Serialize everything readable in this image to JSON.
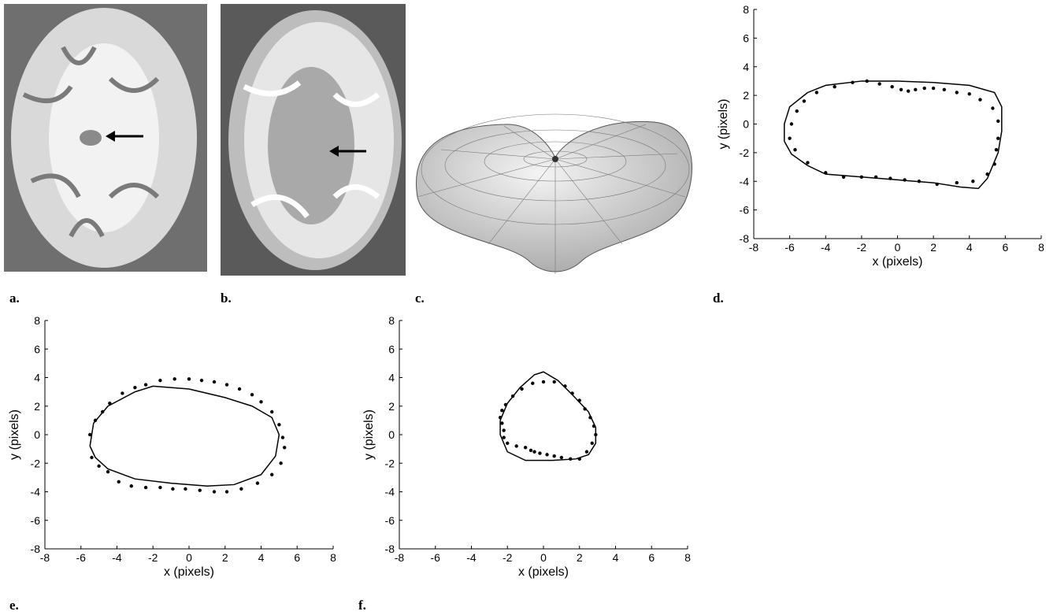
{
  "panel_labels": [
    "a.",
    "b.",
    "c.",
    "d.",
    "e.",
    "f."
  ],
  "chart_data": [
    {
      "type": "scatter",
      "xlabel": "x (pixels)",
      "ylabel": "y (pixels)",
      "xlim": [
        -8,
        8
      ],
      "ylim": [
        -8,
        8
      ],
      "xticks": [
        -8,
        -6,
        -4,
        -2,
        0,
        2,
        4,
        6,
        8
      ],
      "yticks": [
        -8,
        -6,
        -4,
        -2,
        0,
        2,
        4,
        6,
        8
      ],
      "series": [
        {
          "mode": "line",
          "color": "#000000",
          "x": [
            -6.3,
            -6.3,
            -6,
            -5,
            -4,
            -2,
            0,
            2,
            4,
            5.4,
            5.8,
            5.8,
            5.6,
            5,
            4.5,
            3.5,
            2,
            0,
            -2,
            -4,
            -5,
            -5.9,
            -6.3
          ],
          "values": [
            -1.2,
            0,
            1.2,
            2.2,
            2.7,
            3.0,
            3.0,
            2.9,
            2.7,
            2.2,
            1.2,
            -0.5,
            -2,
            -3.8,
            -4.5,
            -4.4,
            -4.1,
            -3.9,
            -3.7,
            -3.5,
            -2.9,
            -2.1,
            -1.2
          ]
        },
        {
          "mode": "markers",
          "color": "#000000",
          "x": [
            -5.7,
            -6,
            -5.9,
            -5.6,
            -5.2,
            -4.5,
            -3.5,
            -2.5,
            -1.7,
            -1,
            -0.3,
            0.2,
            0.6,
            1,
            1.5,
            2,
            2.6,
            3.3,
            4,
            4.6,
            5.3,
            5.6,
            5.6,
            5.5,
            5.4,
            5,
            4.2,
            3.3,
            2.2,
            1.2,
            0.4,
            -0.4,
            -1.2,
            -2,
            -3,
            -4,
            -5
          ],
          "values": [
            -1.8,
            -1,
            0,
            0.9,
            1.6,
            2.2,
            2.6,
            2.9,
            3.0,
            2.8,
            2.6,
            2.4,
            2.3,
            2.4,
            2.5,
            2.5,
            2.4,
            2.2,
            2.1,
            1.7,
            1.1,
            0.2,
            -1,
            -1.8,
            -2.8,
            -3.5,
            -4,
            -4.1,
            -4.2,
            -4.0,
            -3.9,
            -3.8,
            -3.7,
            -3.7,
            -3.7,
            -3.4,
            -2.7
          ]
        }
      ]
    },
    {
      "type": "scatter",
      "xlabel": "x (pixels)",
      "ylabel": "y (pixels)",
      "xlim": [
        -8,
        8
      ],
      "ylim": [
        -8,
        8
      ],
      "xticks": [
        -8,
        -6,
        -4,
        -2,
        0,
        2,
        4,
        6,
        8
      ],
      "yticks": [
        -8,
        -6,
        -4,
        -2,
        0,
        2,
        4,
        6,
        8
      ],
      "series": [
        {
          "mode": "line",
          "color": "#000000",
          "x": [
            -5.5,
            -5.3,
            -4.5,
            -3,
            -2,
            0,
            2,
            3.5,
            4.6,
            5,
            4.8,
            4,
            2.5,
            1,
            -1,
            -3,
            -4.5,
            -5.2,
            -5.5
          ],
          "values": [
            -0.8,
            0.8,
            2.0,
            3.0,
            3.4,
            3.2,
            2.6,
            2.0,
            1.2,
            0,
            -1.5,
            -2.8,
            -3.5,
            -3.6,
            -3.4,
            -3.1,
            -2.4,
            -1.6,
            -0.8
          ]
        },
        {
          "mode": "markers",
          "color": "#000000",
          "x": [
            -5.4,
            -5.5,
            -5.2,
            -4.8,
            -4.4,
            -3.7,
            -3,
            -2.4,
            -1.6,
            -0.8,
            0,
            0.7,
            1.4,
            2.1,
            2.8,
            3.5,
            4,
            4.6,
            5,
            5.2,
            5.3,
            5.1,
            4.6,
            3.8,
            2.9,
            2.1,
            1.4,
            0.6,
            -0.2,
            -0.9,
            -1.6,
            -2.4,
            -3.2,
            -3.9,
            -4.5,
            -5
          ],
          "values": [
            -1.6,
            0,
            1,
            1.6,
            2.2,
            2.9,
            3.3,
            3.5,
            3.8,
            3.9,
            3.9,
            3.8,
            3.7,
            3.5,
            3.2,
            2.8,
            2.3,
            1.6,
            0.7,
            -0.2,
            -0.9,
            -2,
            -2.8,
            -3.4,
            -3.8,
            -4.0,
            -4.0,
            -3.9,
            -3.8,
            -3.8,
            -3.7,
            -3.7,
            -3.6,
            -3.3,
            -2.6,
            -2.2
          ]
        }
      ]
    },
    {
      "type": "scatter",
      "xlabel": "x (pixels)",
      "ylabel": "y (pixels)",
      "xlim": [
        -8,
        8
      ],
      "ylim": [
        -8,
        8
      ],
      "xticks": [
        -8,
        -6,
        -4,
        -2,
        0,
        2,
        4,
        6,
        8
      ],
      "yticks": [
        -8,
        -6,
        -4,
        -2,
        0,
        2,
        4,
        6,
        8
      ],
      "series": [
        {
          "mode": "line",
          "color": "#000000",
          "x": [
            -2.4,
            -2,
            -1.3,
            -0.5,
            0,
            0.8,
            1.6,
            2.5,
            2.9,
            2.9,
            2.5,
            1.8,
            0.5,
            -1,
            -2,
            -2.4,
            -2.4
          ],
          "values": [
            1.0,
            2.2,
            3.3,
            4.2,
            4.4,
            3.8,
            2.8,
            1.6,
            0.5,
            -0.6,
            -1.4,
            -1.7,
            -1.8,
            -1.8,
            -1.2,
            0,
            1.0
          ]
        },
        {
          "mode": "markers",
          "color": "#000000",
          "x": [
            -2.4,
            -2.3,
            -2.2,
            -2.2,
            -2,
            -1.5,
            -1,
            -0.7,
            -0.5,
            -0.2,
            0.2,
            0.6,
            1,
            1.5,
            2,
            2.4,
            2.7,
            2.9,
            2.8,
            2.6,
            2.3,
            2,
            1.6,
            1.2,
            0.6,
            0,
            -0.6,
            -1.2,
            -1.7,
            -2.1,
            -2.3
          ],
          "values": [
            1.2,
            0.8,
            0.3,
            -0.2,
            -0.6,
            -0.8,
            -0.9,
            -1.1,
            -1.2,
            -1.3,
            -1.4,
            -1.5,
            -1.6,
            -1.7,
            -1.7,
            -1.2,
            -0.6,
            0,
            0.6,
            1.2,
            1.8,
            2.4,
            2.9,
            3.4,
            3.7,
            3.7,
            3.6,
            3.2,
            2.7,
            2.1,
            1.7
          ]
        }
      ]
    }
  ]
}
